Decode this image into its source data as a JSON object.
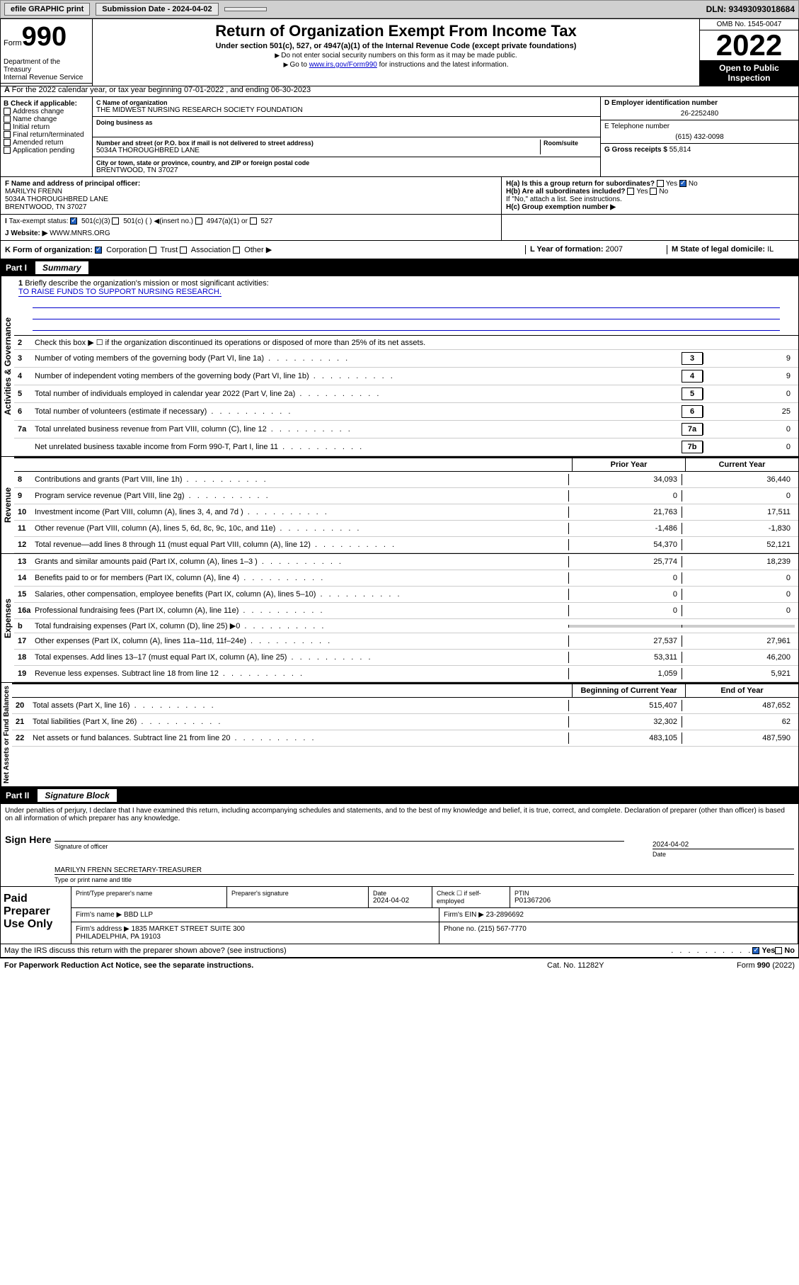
{
  "topbar": {
    "efile": "efile GRAPHIC print",
    "submission": "Submission Date - 2024-04-02",
    "dln": "DLN: 93493093018684"
  },
  "header": {
    "form_label": "Form",
    "form_num": "990",
    "title": "Return of Organization Exempt From Income Tax",
    "sub1": "Under section 501(c), 527, or 4947(a)(1) of the Internal Revenue Code (except private foundations)",
    "sub2": "Do not enter social security numbers on this form as it may be made public.",
    "sub3_pre": "Go to ",
    "sub3_link": "www.irs.gov/Form990",
    "sub3_post": " for instructions and the latest information.",
    "omb": "OMB No. 1545-0047",
    "year": "2022",
    "inspect": "Open to Public Inspection",
    "dept": "Department of the Treasury\nInternal Revenue Service"
  },
  "row_a": "For the 2022 calendar year, or tax year beginning 07-01-2022    , and ending 06-30-2023",
  "col_b": {
    "hdr": "B Check if applicable:",
    "items": [
      "Address change",
      "Name change",
      "Initial return",
      "Final return/terminated",
      "Amended return",
      "Application pending"
    ]
  },
  "col_c": {
    "name_lbl": "C Name of organization",
    "name": "THE MIDWEST NURSING RESEARCH SOCIETY FOUNDATION",
    "dba_lbl": "Doing business as",
    "addr_lbl": "Number and street (or P.O. box if mail is not delivered to street address)",
    "room_lbl": "Room/suite",
    "addr": "5034A THOROUGHBRED LANE",
    "city_lbl": "City or town, state or province, country, and ZIP or foreign postal code",
    "city": "BRENTWOOD, TN  37027"
  },
  "col_d": {
    "ein_lbl": "D Employer identification number",
    "ein": "26-2252480",
    "phone_lbl": "E Telephone number",
    "phone": "(615) 432-0098",
    "gross_lbl": "G Gross receipts $",
    "gross": "55,814"
  },
  "row_f": {
    "lbl": "F Name and address of principal officer:",
    "name": "MARILYN FRENN",
    "addr": "5034A THOROUGHBRED LANE\nBRENTWOOD, TN  37027"
  },
  "row_h": {
    "a": "H(a) Is this a group return for subordinates?",
    "b": "H(b) Are all subordinates included?",
    "note": "If \"No,\" attach a list. See instructions.",
    "c": "H(c) Group exemption number ▶"
  },
  "row_i": {
    "lbl": "Tax-exempt status:",
    "opts": [
      "501(c)(3)",
      "501(c) (  ) ◀(insert no.)",
      "4947(a)(1) or",
      "527"
    ]
  },
  "row_j": {
    "lbl": "Website: ▶",
    "val": "WWW.MNRS.ORG"
  },
  "row_k": {
    "lbl": "K Form of organization:",
    "opts": [
      "Corporation",
      "Trust",
      "Association",
      "Other ▶"
    ]
  },
  "row_l": {
    "lbl": "L Year of formation:",
    "val": "2007"
  },
  "row_m": {
    "lbl": "M State of legal domicile:",
    "val": "IL"
  },
  "part1": {
    "pt": "Part I",
    "ttl": "Summary"
  },
  "summary": {
    "governance_label": "Activities & Governance",
    "revenue_label": "Revenue",
    "expenses_label": "Expenses",
    "netassets_label": "Net Assets or Fund Balances",
    "line1": "Briefly describe the organization's mission or most significant activities:",
    "mission": "TO RAISE FUNDS TO SUPPORT NURSING RESEARCH.",
    "line2": "Check this box ▶ ☐  if the organization discontinued its operations or disposed of more than 25% of its net assets.",
    "lines": [
      {
        "n": "3",
        "t": "Number of voting members of the governing body (Part VI, line 1a)",
        "box": "3",
        "v": "9"
      },
      {
        "n": "4",
        "t": "Number of independent voting members of the governing body (Part VI, line 1b)",
        "box": "4",
        "v": "9"
      },
      {
        "n": "5",
        "t": "Total number of individuals employed in calendar year 2022 (Part V, line 2a)",
        "box": "5",
        "v": "0"
      },
      {
        "n": "6",
        "t": "Total number of volunteers (estimate if necessary)",
        "box": "6",
        "v": "25"
      },
      {
        "n": "7a",
        "t": "Total unrelated business revenue from Part VIII, column (C), line 12",
        "box": "7a",
        "v": "0"
      },
      {
        "n": "",
        "t": "Net unrelated business taxable income from Form 990-T, Part I, line 11",
        "box": "7b",
        "v": "0"
      }
    ],
    "hdr_prior": "Prior Year",
    "hdr_current": "Current Year",
    "rev_lines": [
      {
        "n": "8",
        "t": "Contributions and grants (Part VIII, line 1h)",
        "p": "34,093",
        "c": "36,440"
      },
      {
        "n": "9",
        "t": "Program service revenue (Part VIII, line 2g)",
        "p": "0",
        "c": "0"
      },
      {
        "n": "10",
        "t": "Investment income (Part VIII, column (A), lines 3, 4, and 7d )",
        "p": "21,763",
        "c": "17,511"
      },
      {
        "n": "11",
        "t": "Other revenue (Part VIII, column (A), lines 5, 6d, 8c, 9c, 10c, and 11e)",
        "p": "-1,486",
        "c": "-1,830"
      },
      {
        "n": "12",
        "t": "Total revenue—add lines 8 through 11 (must equal Part VIII, column (A), line 12)",
        "p": "54,370",
        "c": "52,121"
      }
    ],
    "exp_lines": [
      {
        "n": "13",
        "t": "Grants and similar amounts paid (Part IX, column (A), lines 1–3 )",
        "p": "25,774",
        "c": "18,239"
      },
      {
        "n": "14",
        "t": "Benefits paid to or for members (Part IX, column (A), line 4)",
        "p": "0",
        "c": "0"
      },
      {
        "n": "15",
        "t": "Salaries, other compensation, employee benefits (Part IX, column (A), lines 5–10)",
        "p": "0",
        "c": "0"
      },
      {
        "n": "16a",
        "t": "Professional fundraising fees (Part IX, column (A), line 11e)",
        "p": "0",
        "c": "0"
      },
      {
        "n": "b",
        "t": "Total fundraising expenses (Part IX, column (D), line 25) ▶0",
        "p": "",
        "c": "",
        "grey": true
      },
      {
        "n": "17",
        "t": "Other expenses (Part IX, column (A), lines 11a–11d, 11f–24e)",
        "p": "27,537",
        "c": "27,961"
      },
      {
        "n": "18",
        "t": "Total expenses. Add lines 13–17 (must equal Part IX, column (A), line 25)",
        "p": "53,311",
        "c": "46,200"
      },
      {
        "n": "19",
        "t": "Revenue less expenses. Subtract line 18 from line 12",
        "p": "1,059",
        "c": "5,921"
      }
    ],
    "hdr_begin": "Beginning of Current Year",
    "hdr_end": "End of Year",
    "net_lines": [
      {
        "n": "20",
        "t": "Total assets (Part X, line 16)",
        "p": "515,407",
        "c": "487,652"
      },
      {
        "n": "21",
        "t": "Total liabilities (Part X, line 26)",
        "p": "32,302",
        "c": "62"
      },
      {
        "n": "22",
        "t": "Net assets or fund balances. Subtract line 21 from line 20",
        "p": "483,105",
        "c": "487,590"
      }
    ]
  },
  "part2": {
    "pt": "Part II",
    "ttl": "Signature Block"
  },
  "sig": {
    "decl": "Under penalties of perjury, I declare that I have examined this return, including accompanying schedules and statements, and to the best of my knowledge and belief, it is true, correct, and complete. Declaration of preparer (other than officer) is based on all information of which preparer has any knowledge.",
    "sign_here": "Sign Here",
    "sig_officer": "Signature of officer",
    "date_lbl": "Date",
    "date": "2024-04-02",
    "name": "MARILYN FRENN  SECRETARY-TREASURER",
    "name_lbl": "Type or print name and title"
  },
  "paid": {
    "lbl": "Paid Preparer Use Only",
    "prep_name_lbl": "Print/Type preparer's name",
    "prep_sig_lbl": "Preparer's signature",
    "date_lbl": "Date",
    "date": "2024-04-02",
    "check_lbl": "Check ☐ if self-employed",
    "ptin_lbl": "PTIN",
    "ptin": "P01367206",
    "firm_name_lbl": "Firm's name  ▶",
    "firm_name": "BBD LLP",
    "firm_ein_lbl": "Firm's EIN ▶",
    "firm_ein": "23-2896692",
    "firm_addr_lbl": "Firm's address ▶",
    "firm_addr": "1835 MARKET STREET SUITE 300\nPHILADELPHIA, PA  19103",
    "phone_lbl": "Phone no.",
    "phone": "(215) 567-7770"
  },
  "discuss": "May the IRS discuss this return with the preparer shown above? (see instructions)",
  "yes": "Yes",
  "no": "No",
  "footer": {
    "l": "For Paperwork Reduction Act Notice, see the separate instructions.",
    "c": "Cat. No. 11282Y",
    "r": "Form 990 (2022)"
  }
}
